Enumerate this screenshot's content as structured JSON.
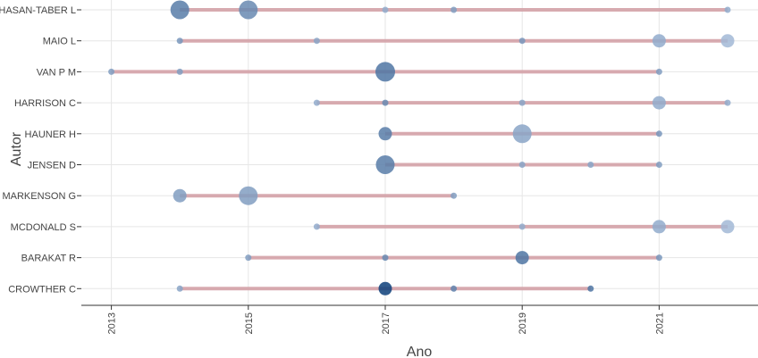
{
  "chart_data": {
    "type": "scatter",
    "xlabel": "Ano",
    "ylabel": "Autor",
    "xlim": [
      2012.6,
      2022.4
    ],
    "x_ticks": [
      "2013",
      "2015",
      "2017",
      "2019",
      "2021"
    ],
    "grid": true,
    "legend": "none",
    "colors": {
      "line": "#d4a2a8",
      "point_dark": "#0d3f7a",
      "point_light": "#b3c6e0",
      "grid": "#e6e6e6",
      "axis": "#333333"
    },
    "authors": [
      {
        "name": "CHASAN-TABER L",
        "start": 2014,
        "end": 2022,
        "points": [
          {
            "year": 2014,
            "size": 3,
            "intensity": 0.55
          },
          {
            "year": 2015,
            "size": 3,
            "intensity": 0.45
          },
          {
            "year": 2017,
            "size": 1,
            "intensity": 0.2
          },
          {
            "year": 2018,
            "size": 1,
            "intensity": 0.3
          },
          {
            "year": 2022,
            "size": 1,
            "intensity": 0.2
          }
        ]
      },
      {
        "name": "MAIO L",
        "start": 2014,
        "end": 2022,
        "points": [
          {
            "year": 2014,
            "size": 1,
            "intensity": 0.35
          },
          {
            "year": 2016,
            "size": 1,
            "intensity": 0.25
          },
          {
            "year": 2019,
            "size": 1,
            "intensity": 0.35
          },
          {
            "year": 2021,
            "size": 2,
            "intensity": 0.2
          },
          {
            "year": 2022,
            "size": 2,
            "intensity": 0.1
          }
        ]
      },
      {
        "name": "VAN P M",
        "start": 2013,
        "end": 2021,
        "points": [
          {
            "year": 2013,
            "size": 1,
            "intensity": 0.3
          },
          {
            "year": 2014,
            "size": 1,
            "intensity": 0.3
          },
          {
            "year": 2017,
            "size": 4,
            "intensity": 0.6
          },
          {
            "year": 2021,
            "size": 1,
            "intensity": 0.3
          }
        ]
      },
      {
        "name": "HARRISON C",
        "start": 2016,
        "end": 2022,
        "points": [
          {
            "year": 2016,
            "size": 1,
            "intensity": 0.2
          },
          {
            "year": 2017,
            "size": 1,
            "intensity": 0.45
          },
          {
            "year": 2019,
            "size": 1,
            "intensity": 0.25
          },
          {
            "year": 2021,
            "size": 2,
            "intensity": 0.2
          },
          {
            "year": 2022,
            "size": 1,
            "intensity": 0.2
          }
        ]
      },
      {
        "name": "HAUNER H",
        "start": 2017,
        "end": 2021,
        "points": [
          {
            "year": 2017,
            "size": 2,
            "intensity": 0.55
          },
          {
            "year": 2019,
            "size": 3,
            "intensity": 0.25
          },
          {
            "year": 2021,
            "size": 1,
            "intensity": 0.35
          }
        ]
      },
      {
        "name": "JENSEN D",
        "start": 2017,
        "end": 2021,
        "points": [
          {
            "year": 2017,
            "size": 3,
            "intensity": 0.55
          },
          {
            "year": 2019,
            "size": 1,
            "intensity": 0.25
          },
          {
            "year": 2020,
            "size": 1,
            "intensity": 0.25
          },
          {
            "year": 2021,
            "size": 1,
            "intensity": 0.3
          }
        ]
      },
      {
        "name": "MARKENSON G",
        "start": 2014,
        "end": 2018,
        "points": [
          {
            "year": 2014,
            "size": 2,
            "intensity": 0.3
          },
          {
            "year": 2015,
            "size": 3,
            "intensity": 0.3
          },
          {
            "year": 2018,
            "size": 1,
            "intensity": 0.3
          }
        ]
      },
      {
        "name": "MCDONALD S",
        "start": 2016,
        "end": 2022,
        "points": [
          {
            "year": 2016,
            "size": 1,
            "intensity": 0.2
          },
          {
            "year": 2019,
            "size": 1,
            "intensity": 0.2
          },
          {
            "year": 2021,
            "size": 2,
            "intensity": 0.2
          },
          {
            "year": 2022,
            "size": 2,
            "intensity": 0.1
          }
        ]
      },
      {
        "name": "BARAKAT R",
        "start": 2015,
        "end": 2021,
        "points": [
          {
            "year": 2015,
            "size": 1,
            "intensity": 0.3
          },
          {
            "year": 2017,
            "size": 1,
            "intensity": 0.45
          },
          {
            "year": 2019,
            "size": 2,
            "intensity": 0.6
          },
          {
            "year": 2021,
            "size": 1,
            "intensity": 0.35
          }
        ]
      },
      {
        "name": "CROWTHER C",
        "start": 2014,
        "end": 2020,
        "points": [
          {
            "year": 2014,
            "size": 1,
            "intensity": 0.25
          },
          {
            "year": 2017,
            "size": 2,
            "intensity": 1.0
          },
          {
            "year": 2018,
            "size": 1,
            "intensity": 0.5
          },
          {
            "year": 2020,
            "size": 1,
            "intensity": 0.6
          }
        ]
      }
    ]
  }
}
